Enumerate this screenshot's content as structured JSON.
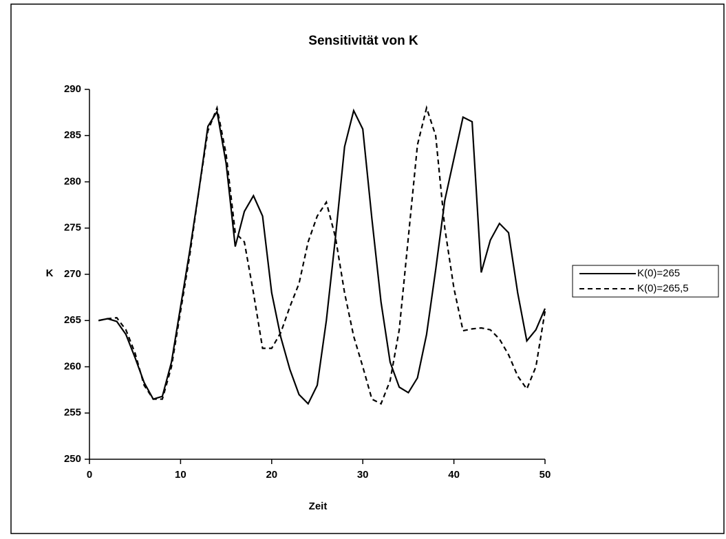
{
  "chart_data": {
    "type": "line",
    "title": "Sensitivität von K",
    "xlabel": "Zeit",
    "ylabel": "K",
    "x": [
      1,
      2,
      3,
      4,
      5,
      6,
      7,
      8,
      9,
      10,
      11,
      12,
      13,
      14,
      15,
      16,
      17,
      18,
      19,
      20,
      21,
      22,
      23,
      24,
      25,
      26,
      27,
      28,
      29,
      30,
      31,
      32,
      33,
      34,
      35,
      36,
      37,
      38,
      39,
      40,
      41,
      42,
      43,
      44,
      45,
      46,
      47,
      48,
      49,
      50
    ],
    "series": [
      {
        "name": "K(0)=265",
        "color": "#000000",
        "line_style": "solid",
        "values": [
          265,
          265.2,
          264.9,
          263.5,
          261,
          258.3,
          256.5,
          256.8,
          260.5,
          266.5,
          272.5,
          279,
          286,
          287.6,
          282,
          273,
          276.8,
          278.5,
          276.3,
          268,
          263.2,
          259.7,
          257,
          256,
          258,
          265,
          274,
          283.8,
          287.7,
          285.7,
          276,
          267,
          260.5,
          257.8,
          257.2,
          258.8,
          263.5,
          270.5,
          278,
          282.5,
          287,
          286.5,
          270.2,
          273.7,
          275.5,
          274.5,
          268,
          262.8,
          264,
          266.3
        ]
      },
      {
        "name": "K(0)=265,5",
        "color": "#000000",
        "line_style": "dashed",
        "values": [
          265,
          265.2,
          265.3,
          264,
          261.5,
          258,
          256.5,
          256.5,
          260,
          266,
          272,
          279,
          285.5,
          288,
          283,
          274.5,
          273.5,
          268,
          262,
          262,
          263.7,
          266.5,
          269,
          273.5,
          276.3,
          277.8,
          274,
          268,
          263.3,
          260,
          256.5,
          256,
          258.5,
          264,
          274,
          284,
          288,
          285,
          275,
          268.5,
          263.9,
          264.1,
          264.2,
          264,
          263,
          261.3,
          259,
          257.6,
          260,
          266
        ]
      }
    ],
    "xlim": [
      0,
      50
    ],
    "xticks": [
      0,
      10,
      20,
      30,
      40,
      50
    ],
    "ylim": [
      250,
      290
    ],
    "yticks": [
      250,
      255,
      260,
      265,
      270,
      275,
      280,
      285,
      290
    ],
    "legend": "right"
  }
}
